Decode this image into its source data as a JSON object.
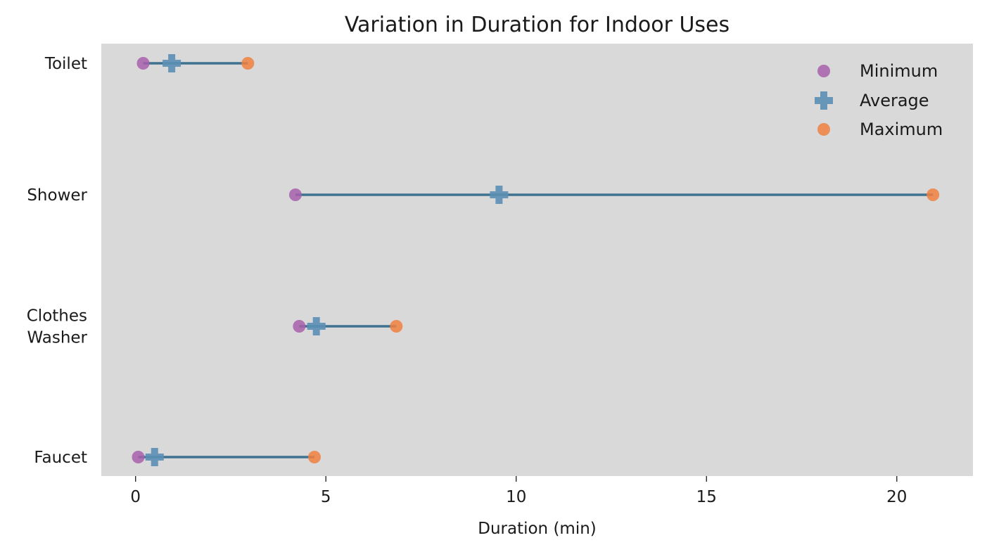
{
  "chart_data": {
    "type": "dumbbell",
    "title": "Variation in Duration for Indoor Uses",
    "xlabel": "Duration (min)",
    "ylabel": "",
    "xlim": [
      -0.9,
      22
    ],
    "xticks": [
      0,
      5,
      10,
      15,
      20
    ],
    "categories": [
      [
        "Toilet"
      ],
      [
        "Shower"
      ],
      [
        "Clothes",
        "Washer"
      ],
      [
        "Faucet"
      ]
    ],
    "series": [
      {
        "name": "Minimum",
        "values": [
          0.2,
          4.2,
          4.3,
          0.07
        ],
        "color": "#a75fab",
        "marker": "circle"
      },
      {
        "name": "Average",
        "values": [
          0.95,
          9.55,
          4.75,
          0.5
        ],
        "color": "#5b8fb5",
        "marker": "plus"
      },
      {
        "name": "Maximum",
        "values": [
          2.95,
          20.95,
          6.85,
          4.7
        ],
        "color": "#f08040",
        "marker": "circle"
      }
    ],
    "range_line_color": "#3e728f",
    "plot_background": "#d9d9d9",
    "grid": false,
    "legend_position": "top-right"
  }
}
